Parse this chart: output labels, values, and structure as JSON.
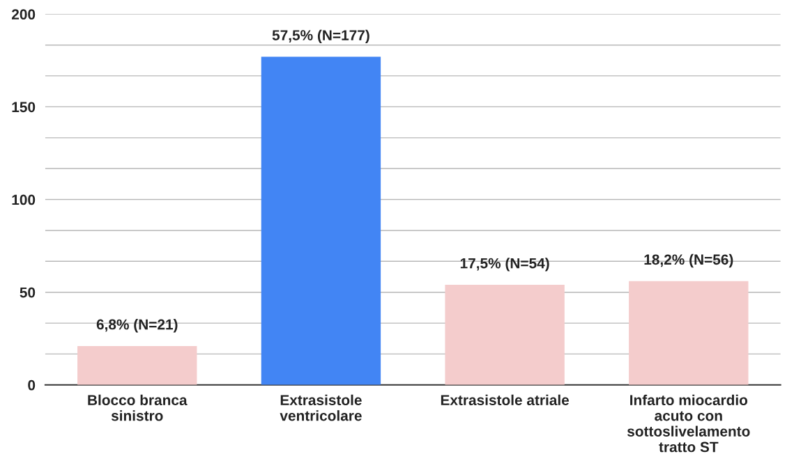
{
  "chart_data": {
    "type": "bar",
    "categories": [
      "Blocco branca\nsinistro",
      "Extrasistole\nventricolare",
      "Extrasistole atriale",
      "Infarto miocardio\nacuto con\nsottoslivelamento\ntratto ST"
    ],
    "values": [
      21,
      177,
      54,
      56
    ],
    "colors": [
      "#f4cccc",
      "#4285f4",
      "#f4cccc",
      "#f4cccc"
    ],
    "value_labels": [
      "6,8% (N=21)",
      "57,5% (N=177)",
      "17,5% (N=54)",
      "18,2% (N=56)"
    ],
    "ylim": [
      0,
      200
    ],
    "yticks": [
      0,
      {
        "value": 16.7,
        "label": null
      },
      {
        "value": 33.3,
        "label": null
      },
      50,
      {
        "value": 66.7,
        "label": null
      },
      {
        "value": 83.3,
        "label": null
      },
      100,
      {
        "value": 116.7,
        "label": null
      },
      {
        "value": 133.3,
        "label": null
      },
      150,
      {
        "value": 166.7,
        "label": null
      },
      {
        "value": 183.3,
        "label": null
      },
      200
    ],
    "grid": "y"
  }
}
